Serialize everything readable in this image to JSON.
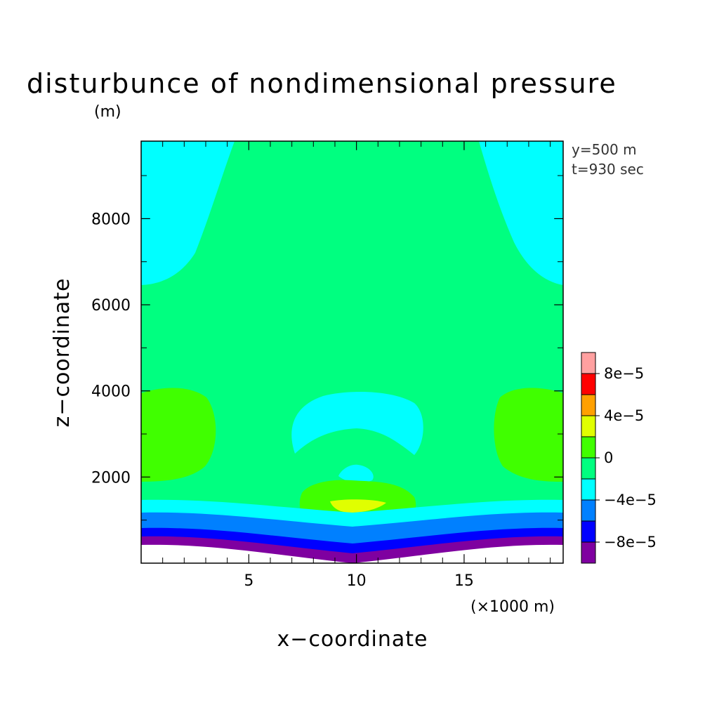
{
  "chart_data": {
    "type": "heatmap",
    "title": "disturbunce of nondimensional pressure",
    "z_unit_label": "(m)",
    "x_unit_label": "(×1000 m)",
    "xlabel": "x−coordinate",
    "ylabel": "z−coordinate",
    "info_lines": [
      "y=500 m",
      "t=930 sec"
    ],
    "xlim": [
      0,
      19.6
    ],
    "ylim": [
      0,
      9800
    ],
    "x_ticks": [
      5,
      10,
      15
    ],
    "x_tick_labels": [
      "5",
      "10",
      "15"
    ],
    "y_ticks": [
      2000,
      4000,
      6000,
      8000
    ],
    "y_tick_labels": [
      "2000",
      "4000",
      "6000",
      "8000"
    ],
    "grid": false,
    "colorbar": {
      "levels": [
        -0.0001,
        -8e-05,
        -6e-05,
        -4e-05,
        -2e-05,
        0,
        2e-05,
        4e-05,
        6e-05,
        8e-05,
        0.0001
      ],
      "colors": [
        "#7f00a0",
        "#0000ff",
        "#0080ff",
        "#00ffff",
        "#00ff80",
        "#40ff00",
        "#e0ff00",
        "#ffa000",
        "#ff0000",
        "#ffa0a0"
      ],
      "tick_values": [
        -8e-05,
        -4e-05,
        0,
        4e-05,
        8e-05
      ],
      "tick_labels": [
        "−8e−5",
        "−4e−5",
        "0",
        "4e−5",
        "8e−5"
      ]
    },
    "regions": [
      {
        "label": "-2e-5 to 0 (green)",
        "level_index": 4
      },
      {
        "label": "-4e-5 to -2e-5 (cyan) upper corners",
        "level_index": 3
      },
      {
        "label": "0 to 2e-5 (light green) side lobes",
        "level_index": 5
      },
      {
        "label": "-4e-5 to -2e-5 (cyan) arc at z≈3500",
        "level_index": 3
      },
      {
        "label": "2e-5 to 4e-5 (yellow) center near z≈1400",
        "level_index": 6
      },
      {
        "label": "near-surface negative bands",
        "level_index": 0
      }
    ],
    "terrain": "bell-shaped hill centred at x=10, surface lowest at center"
  }
}
